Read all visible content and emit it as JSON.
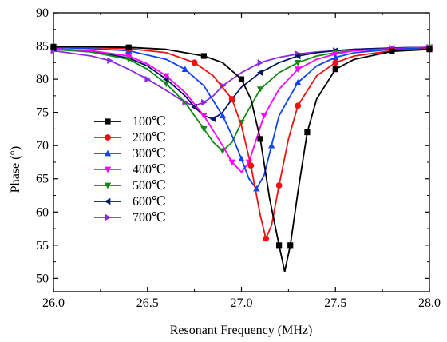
{
  "chart_data": {
    "type": "line",
    "title": "",
    "xlabel": "Resonant Frequency (MHz)",
    "ylabel": "Phase (°)",
    "xlim": [
      26.0,
      28.0
    ],
    "ylim": [
      48,
      90
    ],
    "x_ticks": [
      "26.0",
      "26.5",
      "27.0",
      "27.5",
      "28.0"
    ],
    "y_ticks": [
      "50",
      "55",
      "60",
      "65",
      "70",
      "75",
      "80",
      "85",
      "90"
    ],
    "grid": false,
    "legend_position": "left-middle",
    "series": [
      {
        "name": "100℃",
        "color": "#000000",
        "marker": "square",
        "x": [
          26.0,
          26.2,
          26.4,
          26.6,
          26.8,
          26.9,
          27.0,
          27.05,
          27.1,
          27.15,
          27.2,
          27.23,
          27.26,
          27.3,
          27.35,
          27.4,
          27.5,
          27.6,
          27.8,
          28.0
        ],
        "values": [
          84.9,
          84.9,
          84.8,
          84.5,
          83.5,
          82.5,
          80.0,
          77.0,
          71.0,
          62.0,
          55.0,
          51.0,
          55.0,
          63.0,
          72.0,
          77.0,
          81.5,
          83.0,
          84.2,
          84.5
        ]
      },
      {
        "name": "200℃",
        "color": "#ee1111",
        "marker": "circle",
        "x": [
          26.0,
          26.2,
          26.4,
          26.6,
          26.75,
          26.85,
          26.95,
          27.0,
          27.05,
          27.1,
          27.13,
          27.16,
          27.2,
          27.25,
          27.3,
          27.4,
          27.5,
          27.6,
          27.8,
          28.0
        ],
        "values": [
          84.9,
          84.8,
          84.6,
          84.0,
          82.5,
          80.5,
          77.0,
          73.0,
          67.0,
          59.5,
          56.0,
          58.0,
          64.0,
          71.0,
          76.0,
          80.5,
          82.5,
          83.5,
          84.3,
          84.6
        ]
      },
      {
        "name": "300℃",
        "color": "#1144ee",
        "marker": "triangle-up",
        "x": [
          26.0,
          26.2,
          26.4,
          26.6,
          26.7,
          26.8,
          26.9,
          26.95,
          27.0,
          27.04,
          27.08,
          27.12,
          27.16,
          27.2,
          27.3,
          27.4,
          27.5,
          27.6,
          27.8,
          28.0
        ],
        "values": [
          84.8,
          84.6,
          84.3,
          83.0,
          81.5,
          79.0,
          74.5,
          71.5,
          68.0,
          65.0,
          63.5,
          65.5,
          70.0,
          74.5,
          79.5,
          82.0,
          83.3,
          84.0,
          84.5,
          84.7
        ]
      },
      {
        "name": "400℃",
        "color": "#ff00ff",
        "marker": "triangle-down",
        "x": [
          26.0,
          26.2,
          26.4,
          26.5,
          26.6,
          26.7,
          26.8,
          26.9,
          26.95,
          27.0,
          27.04,
          27.08,
          27.12,
          27.2,
          27.3,
          27.4,
          27.5,
          27.6,
          27.8,
          28.0
        ],
        "values": [
          84.6,
          84.3,
          83.5,
          82.3,
          80.5,
          78.0,
          74.5,
          70.0,
          67.5,
          66.0,
          67.5,
          71.0,
          74.5,
          78.5,
          81.5,
          83.0,
          83.8,
          84.3,
          84.6,
          84.8
        ]
      },
      {
        "name": "500℃",
        "color": "#118811",
        "marker": "triangle-down",
        "x": [
          26.0,
          26.2,
          26.4,
          26.5,
          26.6,
          26.7,
          26.8,
          26.85,
          26.9,
          26.95,
          27.0,
          27.05,
          27.1,
          27.2,
          27.3,
          27.4,
          27.5,
          27.6,
          27.8,
          28.0
        ],
        "values": [
          84.5,
          84.1,
          83.0,
          81.5,
          79.3,
          76.5,
          72.5,
          70.5,
          69.2,
          70.5,
          73.5,
          76.0,
          78.5,
          81.0,
          82.5,
          83.5,
          84.0,
          84.3,
          84.6,
          84.8
        ]
      },
      {
        "name": "600℃",
        "color": "#001a66",
        "marker": "triangle-left",
        "x": [
          26.0,
          26.2,
          26.4,
          26.5,
          26.6,
          26.7,
          26.75,
          26.8,
          26.85,
          26.9,
          26.95,
          27.0,
          27.1,
          27.2,
          27.3,
          27.4,
          27.5,
          27.6,
          27.8,
          28.0
        ],
        "values": [
          84.6,
          84.2,
          83.2,
          82.0,
          80.0,
          77.5,
          75.8,
          74.5,
          74.0,
          75.0,
          77.0,
          78.8,
          81.0,
          82.5,
          83.5,
          84.0,
          84.3,
          84.5,
          84.7,
          84.8
        ]
      },
      {
        "name": "700℃",
        "color": "#8a2be2",
        "marker": "triangle-right",
        "x": [
          26.0,
          26.2,
          26.3,
          26.4,
          26.5,
          26.6,
          26.7,
          26.75,
          26.8,
          26.85,
          26.9,
          27.0,
          27.1,
          27.2,
          27.3,
          27.4,
          27.5,
          27.6,
          27.8,
          28.0
        ],
        "values": [
          84.3,
          83.5,
          82.8,
          81.5,
          80.0,
          78.3,
          76.5,
          76.0,
          76.5,
          77.5,
          79.0,
          81.0,
          82.5,
          83.3,
          83.8,
          84.1,
          84.3,
          84.5,
          84.7,
          84.8
        ]
      }
    ]
  }
}
